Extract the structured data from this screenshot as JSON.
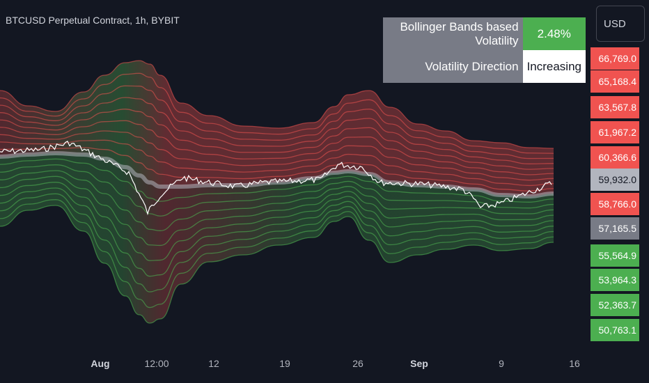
{
  "header": {
    "title": "BTCUSD Perpetual Contract, 1h, BYBIT"
  },
  "indicator_table": {
    "row1_label": "Bollinger Bands based Volatility",
    "row1_value": "2.48%",
    "row2_label": "Volatility Direction",
    "row2_value": "Increasing"
  },
  "currency": {
    "label": "USD"
  },
  "colors": {
    "background": "#131722",
    "upper_bands": "#f05350",
    "lower_bands": "#4caf50",
    "basis_line": "#b2b5be",
    "price_line": "#ffffff"
  },
  "price_axis": {
    "labels": [
      {
        "text": "66,769.0",
        "color": "#f05350"
      },
      {
        "text": "65,168.4",
        "color": "#f05350"
      },
      {
        "text": "63,567.8",
        "color": "#f05350"
      },
      {
        "text": "61,967.2",
        "color": "#f05350"
      },
      {
        "text": "60,366.6",
        "color": "#f05350"
      },
      {
        "text": "59,932.0",
        "color": "#b2b5be"
      },
      {
        "text": "58,766.0",
        "color": "#f05350"
      },
      {
        "text": "57,165.5",
        "color": "#787b86"
      },
      {
        "text": "55,564.9",
        "color": "#4caf50"
      },
      {
        "text": "53,964.3",
        "color": "#4caf50"
      },
      {
        "text": "52,363.7",
        "color": "#4caf50"
      },
      {
        "text": "50,763.1",
        "color": "#4caf50"
      }
    ]
  },
  "time_axis": {
    "labels": [
      {
        "text": "Aug",
        "bold": true
      },
      {
        "text": "12:00",
        "bold": false
      },
      {
        "text": "12",
        "bold": false
      },
      {
        "text": "19",
        "bold": false
      },
      {
        "text": "26",
        "bold": false
      },
      {
        "text": "Sep",
        "bold": true
      },
      {
        "text": "9",
        "bold": false
      },
      {
        "text": "16",
        "bold": false
      }
    ]
  }
}
